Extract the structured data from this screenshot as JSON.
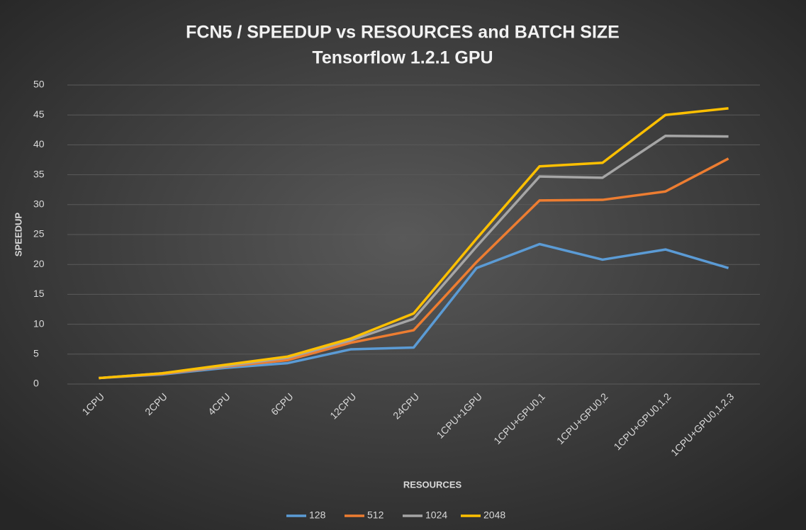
{
  "chart_data": {
    "type": "line",
    "title": "FCN5 / SPEEDUP vs RESOURCES and BATCH SIZE",
    "subtitle": "Tensorflow 1.2.1 GPU",
    "x_label": "RESOURCES",
    "y_label": "SPEEDUP",
    "categories": [
      "1CPU",
      "2CPU",
      "4CPU",
      "6CPU",
      "12CPU",
      "24CPU",
      "1CPU+1GPU",
      "1CPU+GPU0,1",
      "1CPU+GPU0,2",
      "1CPU+GPU0,1,2",
      "1CPU+GPU0,1,2,3"
    ],
    "series": [
      {
        "name": "128",
        "color": "#5b9bd5",
        "values": [
          1,
          1.6,
          2.7,
          3.5,
          5.8,
          6.1,
          19.4,
          23.4,
          20.8,
          22.5,
          19.4
        ]
      },
      {
        "name": "512",
        "color": "#ed7d31",
        "values": [
          1,
          1.7,
          2.9,
          4.0,
          6.9,
          9.0,
          20.4,
          30.7,
          30.8,
          32.2,
          37.7
        ]
      },
      {
        "name": "1024",
        "color": "#a5a5a5",
        "values": [
          1,
          1.8,
          3.0,
          4.4,
          7.3,
          10.9,
          23.0,
          34.7,
          34.5,
          41.5,
          41.4
        ]
      },
      {
        "name": "2048",
        "color": "#ffc000",
        "values": [
          1,
          1.8,
          3.2,
          4.6,
          7.6,
          11.8,
          24.3,
          36.4,
          37.0,
          45.0,
          46.1
        ]
      }
    ],
    "ylim": [
      0,
      50
    ],
    "yticks": [
      0,
      5,
      10,
      15,
      20,
      25,
      30,
      35,
      40,
      45,
      50
    ],
    "grid": true,
    "legend": "bottom"
  }
}
